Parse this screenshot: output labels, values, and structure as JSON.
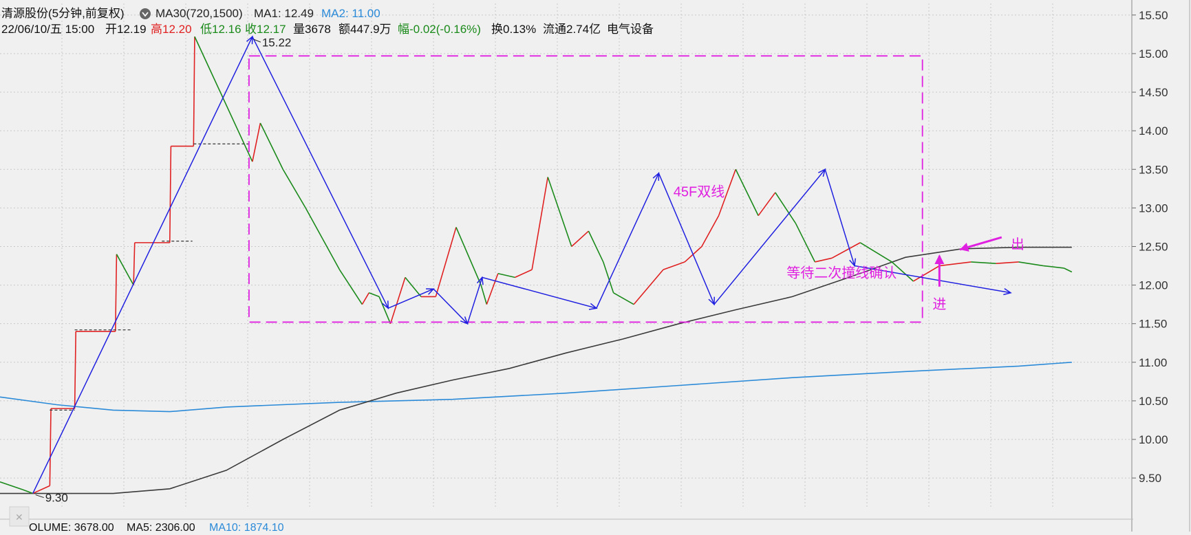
{
  "header": {
    "stock_name": "清源股份(5分钟,前复权)",
    "ma30_label": "MA30(720,1500)",
    "ma1_label": "MA1: 12.49",
    "ma2_label": "MA2: 11.00",
    "date": "22/06/10/五 15:00",
    "open": "开12.19",
    "high": "高12.20",
    "low": "低12.16",
    "close": "收12.17",
    "volume": "量3678",
    "amount": "额447.9万",
    "change": "幅-0.02(-0.16%)",
    "turnover": "换0.13%",
    "float": "流通2.74亿",
    "industry": "电气设备"
  },
  "footer": {
    "volume_label": "OLUME: 3678.00",
    "ma5_label": "MA5: 2306.00",
    "ma10_label": "MA10: 1874.10"
  },
  "colors": {
    "background": "#f0f0f0",
    "up": "#e02020",
    "down": "#1a8a1a",
    "ma1": "#3a3a3a",
    "ma2": "#2a8ad8",
    "wave": "#2020e0",
    "annotation": "#e020e0",
    "grid": "#c8c8c8"
  },
  "chart_data": {
    "type": "line",
    "y_axis_ticks": [
      "15.50",
      "15.00",
      "14.50",
      "14.00",
      "13.50",
      "13.00",
      "12.50",
      "12.00",
      "11.50",
      "11.00",
      "10.50",
      "10.00",
      "9.50"
    ],
    "ylim": [
      9.1,
      15.65
    ],
    "x_range": [
      0,
      1000
    ],
    "price_series": {
      "name": "price",
      "x": [
        0,
        20,
        29,
        44,
        45,
        66,
        67,
        102,
        103,
        118,
        119,
        150,
        151,
        171,
        172,
        223,
        230,
        250,
        270,
        285,
        300,
        320,
        326,
        335,
        345,
        358,
        372,
        385,
        403,
        425,
        430,
        440,
        455,
        470,
        484,
        505,
        520,
        533,
        542,
        560,
        586,
        605,
        620,
        635,
        650,
        670,
        685,
        703,
        720,
        735,
        760,
        788,
        807,
        830,
        858,
        880,
        900,
        922,
        940,
        947
      ],
      "y": [
        9.45,
        9.35,
        9.3,
        9.4,
        10.4,
        10.4,
        11.4,
        11.4,
        12.4,
        12.0,
        12.55,
        12.55,
        13.8,
        13.8,
        15.22,
        13.6,
        14.1,
        13.5,
        13.0,
        12.6,
        12.2,
        11.75,
        11.9,
        11.85,
        11.5,
        12.1,
        11.85,
        11.85,
        12.75,
        12.0,
        11.75,
        12.15,
        12.1,
        12.2,
        13.4,
        12.5,
        12.7,
        12.3,
        11.9,
        11.75,
        12.2,
        12.3,
        12.5,
        12.9,
        13.5,
        12.9,
        13.2,
        12.8,
        12.3,
        12.35,
        12.55,
        12.3,
        12.05,
        12.25,
        12.3,
        12.28,
        12.3,
        12.25,
        12.22,
        12.17
      ]
    },
    "ma1_series": {
      "name": "MA1",
      "x": [
        0,
        100,
        150,
        200,
        250,
        300,
        350,
        400,
        450,
        500,
        550,
        600,
        650,
        700,
        750,
        800,
        850,
        900,
        947
      ],
      "y": [
        9.3,
        9.3,
        9.36,
        9.6,
        10.0,
        10.38,
        10.6,
        10.77,
        10.92,
        11.12,
        11.3,
        11.5,
        11.68,
        11.85,
        12.1,
        12.36,
        12.47,
        12.49,
        12.49
      ]
    },
    "ma2_series": {
      "name": "MA2",
      "x": [
        0,
        50,
        100,
        150,
        200,
        300,
        400,
        500,
        600,
        700,
        800,
        900,
        947
      ],
      "y": [
        10.55,
        10.45,
        10.38,
        10.36,
        10.42,
        10.48,
        10.52,
        10.6,
        10.7,
        10.8,
        10.88,
        10.95,
        11.0
      ]
    },
    "wave_lines": {
      "x": [
        29,
        223,
        343,
        383,
        413,
        426,
        527,
        582,
        631,
        729,
        755,
        893
      ],
      "y": [
        9.3,
        15.22,
        11.7,
        11.95,
        11.5,
        12.1,
        11.7,
        13.45,
        11.75,
        13.5,
        12.25,
        11.9
      ]
    },
    "box": {
      "x": [
        220,
        815
      ],
      "y": [
        11.52,
        14.97
      ]
    },
    "step_lines": [
      {
        "x": [
          66,
          117
        ],
        "y": 11.42
      },
      {
        "x": [
          143,
          170
        ],
        "y": 12.57
      },
      {
        "x": [
          171,
          220
        ],
        "y": 13.83
      },
      {
        "x": [
          44,
          66
        ],
        "y": 10.38
      }
    ],
    "annotations": {
      "high": "15.22",
      "low": "9.30",
      "box_label": "45F双线",
      "wait_label": "等待二次撞线确认",
      "entry_label": "进",
      "exit_label": "出"
    }
  }
}
